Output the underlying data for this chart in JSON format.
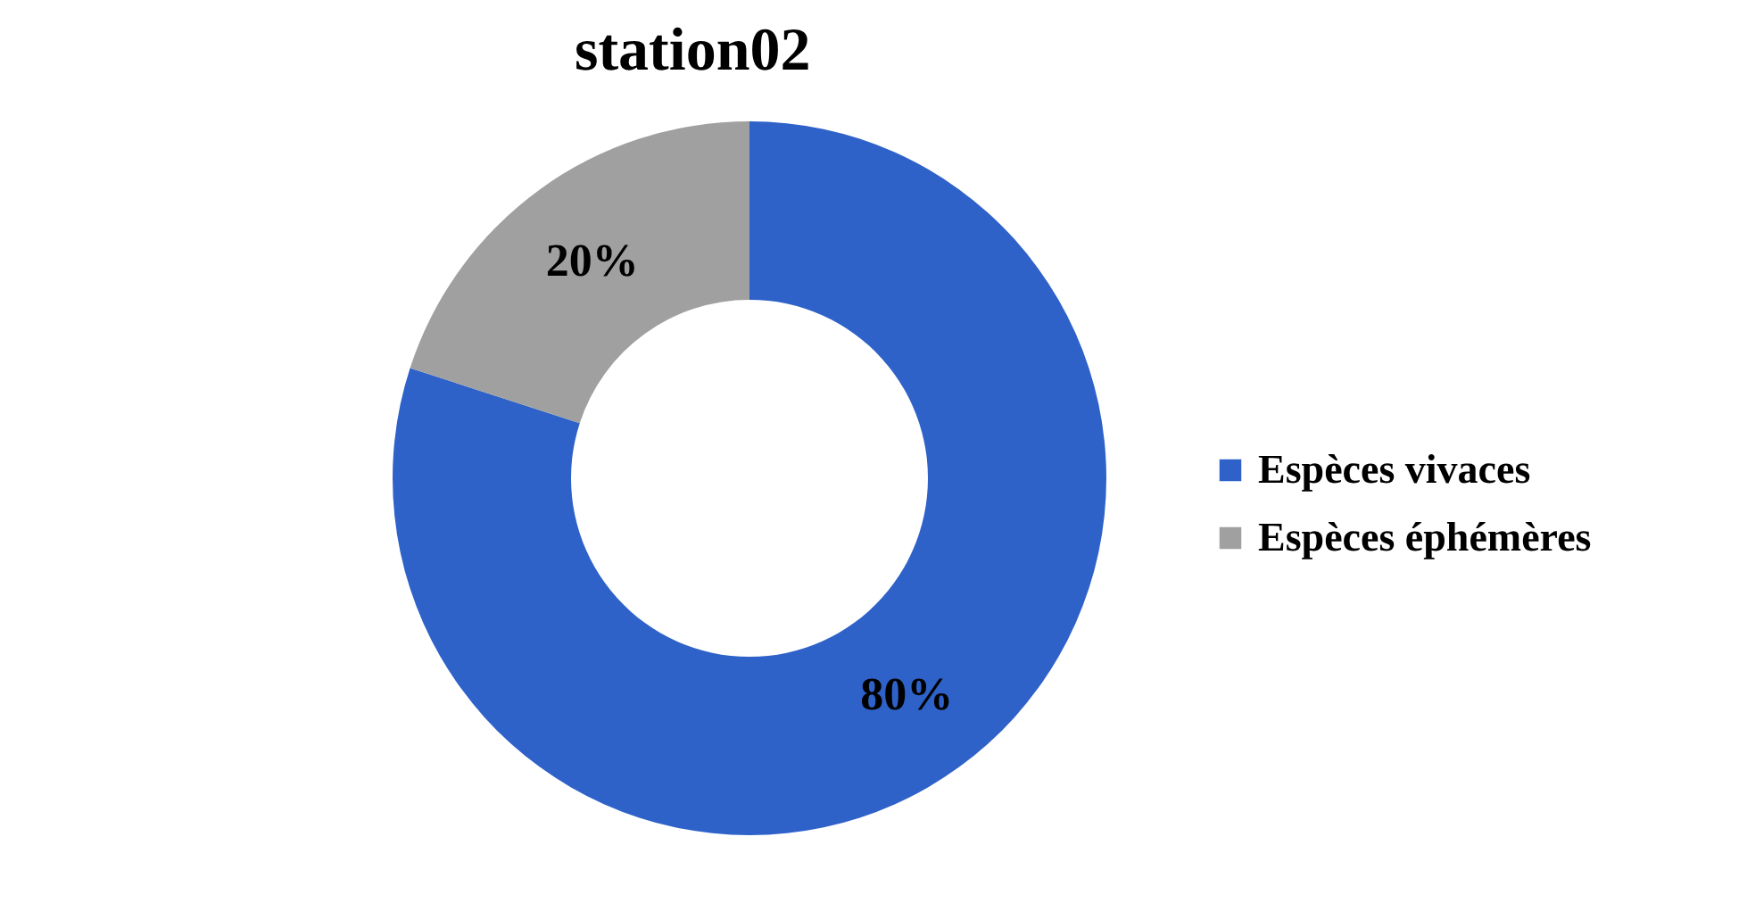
{
  "chart_data": {
    "type": "donut",
    "title": "station02",
    "categories": [
      "Espèces vivaces",
      "Espèces éphémères"
    ],
    "values": [
      80,
      20
    ],
    "colors": [
      "#2e62c9",
      "#a0a0a0"
    ],
    "value_labels": [
      "80%",
      "20%"
    ],
    "legend": "right"
  }
}
